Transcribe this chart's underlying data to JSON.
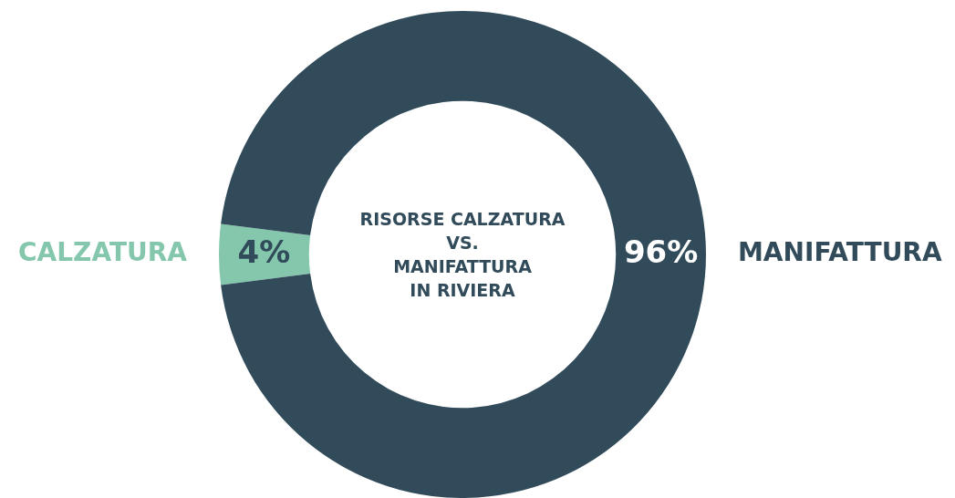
{
  "chart_data": {
    "type": "donut",
    "title": "RISORSE CALZATURA\nVS.\nMANIFATTURA\nIN RIVIERA",
    "categories": [
      "CALZATURA",
      "MANIFATTURA"
    ],
    "values": [
      4,
      96
    ],
    "colors": [
      "#84c7ad",
      "#314b5a"
    ],
    "value_labels": [
      "4%",
      "96%"
    ],
    "legend": false
  }
}
